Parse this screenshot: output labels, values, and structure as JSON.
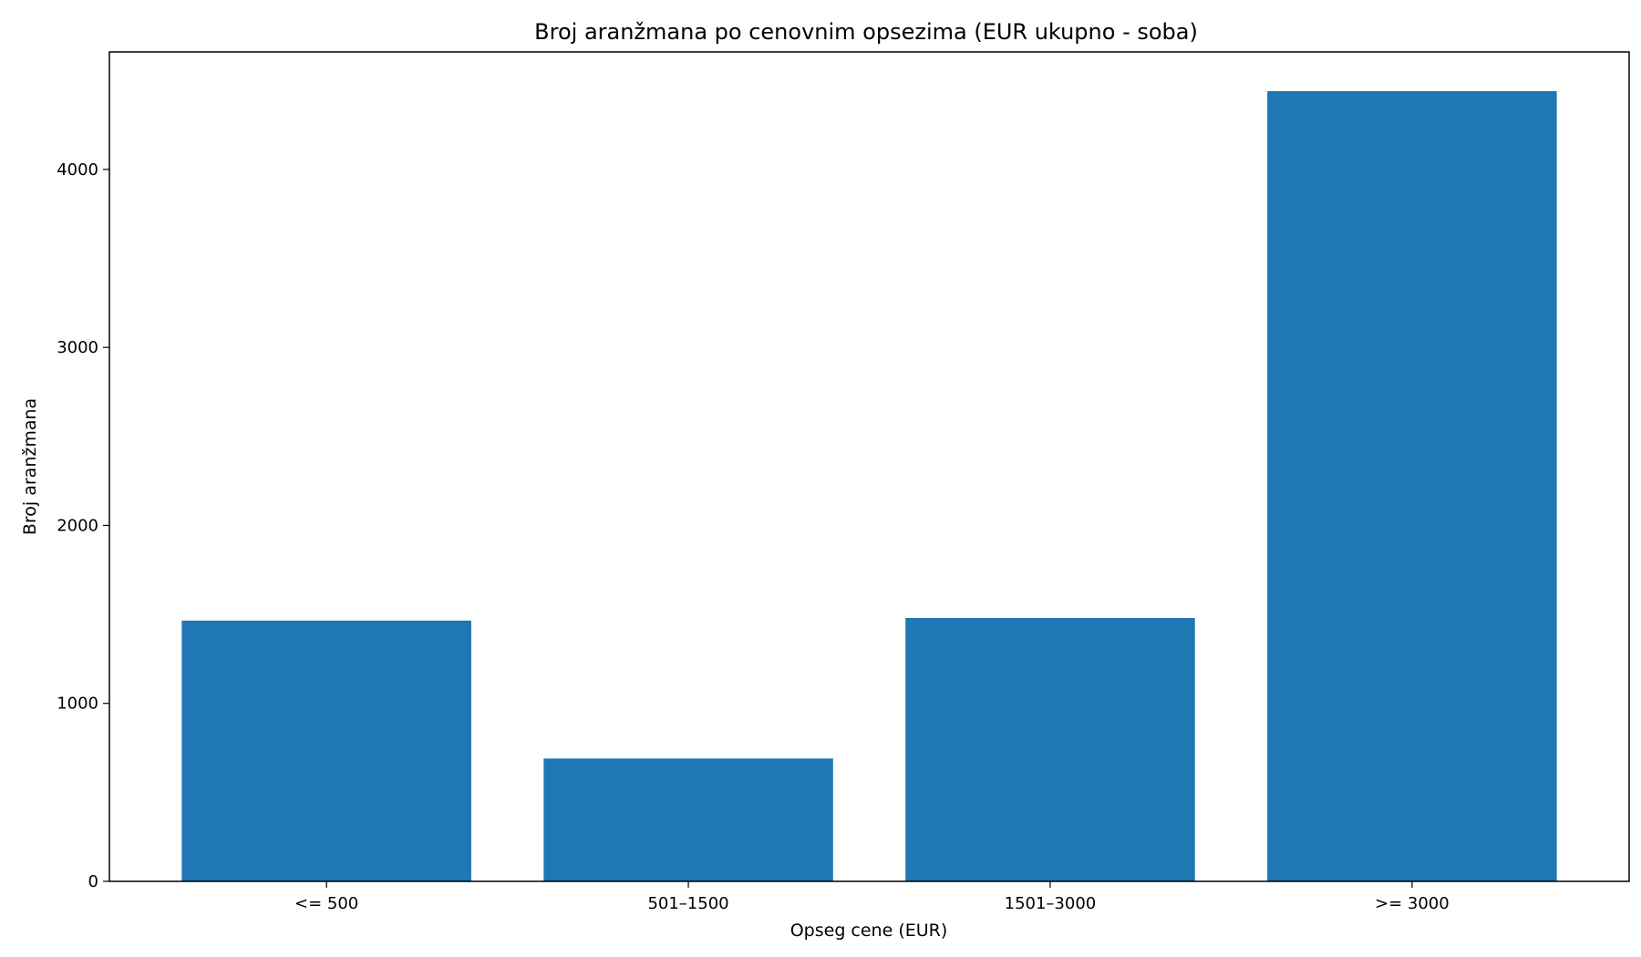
{
  "chart_data": {
    "type": "bar",
    "title": "Broj aranžmana po cenovnim opsezima (EUR ukupno - soba)",
    "xlabel": "Opseg cene (EUR)",
    "ylabel": "Broj aranžmana",
    "categories": [
      "<= 500",
      "501–1500",
      "1501–3000",
      ">= 3000"
    ],
    "values": [
      1465,
      690,
      1480,
      4440
    ],
    "ylim": [
      0,
      4660
    ],
    "yticks": [
      0,
      1000,
      2000,
      3000,
      4000
    ],
    "grid": false,
    "legend": "none",
    "bar_color": "#1f77b4"
  }
}
